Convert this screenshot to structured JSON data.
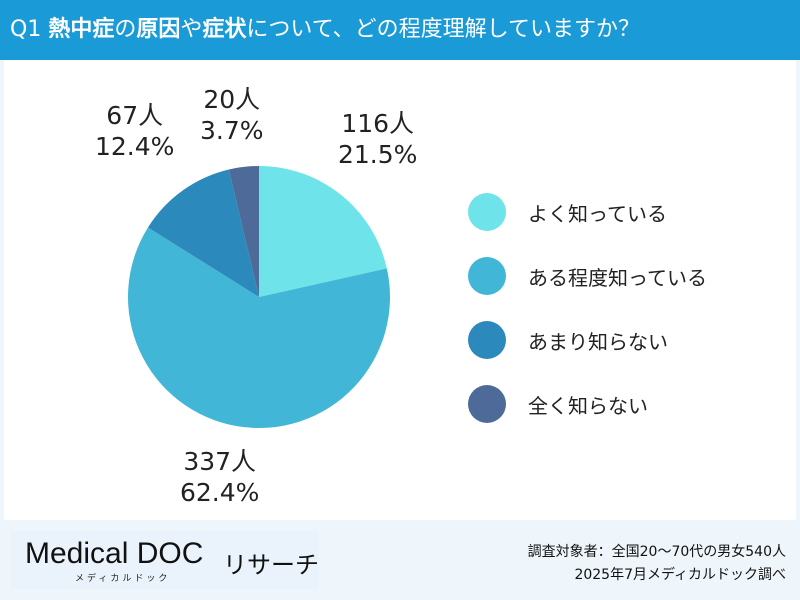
{
  "header": {
    "prefix": "Q1 ",
    "bold1": "熱中症",
    "t1": "の",
    "bold2": "原因",
    "t2": "や",
    "bold3": "症状",
    "t3": "について、どの程度理解していますか？"
  },
  "chart_data": {
    "type": "pie",
    "start": "top",
    "direction": "clockwise",
    "categories": [
      "よく知っている",
      "ある程度知っている",
      "あまり知らない",
      "全く知らない"
    ],
    "counts": [
      "116人",
      "337人",
      "67人",
      "20人"
    ],
    "percent_labels": [
      "21.5%",
      "62.4%",
      "12.4%",
      "3.7%"
    ],
    "values": [
      21.5,
      62.4,
      12.4,
      3.7
    ],
    "colors": [
      "#6ee3e9",
      "#42b6d7",
      "#2b89bc",
      "#4d6a99"
    ],
    "legend": "right"
  },
  "footer": {
    "logo_text": "Medical DOC",
    "logo_suffix": "リサーチ",
    "logo_kana": "メディカルドック",
    "note1": "調査対象者：全国20〜70代の男女540人",
    "note2": "2025年7月メディカルドック調べ"
  }
}
